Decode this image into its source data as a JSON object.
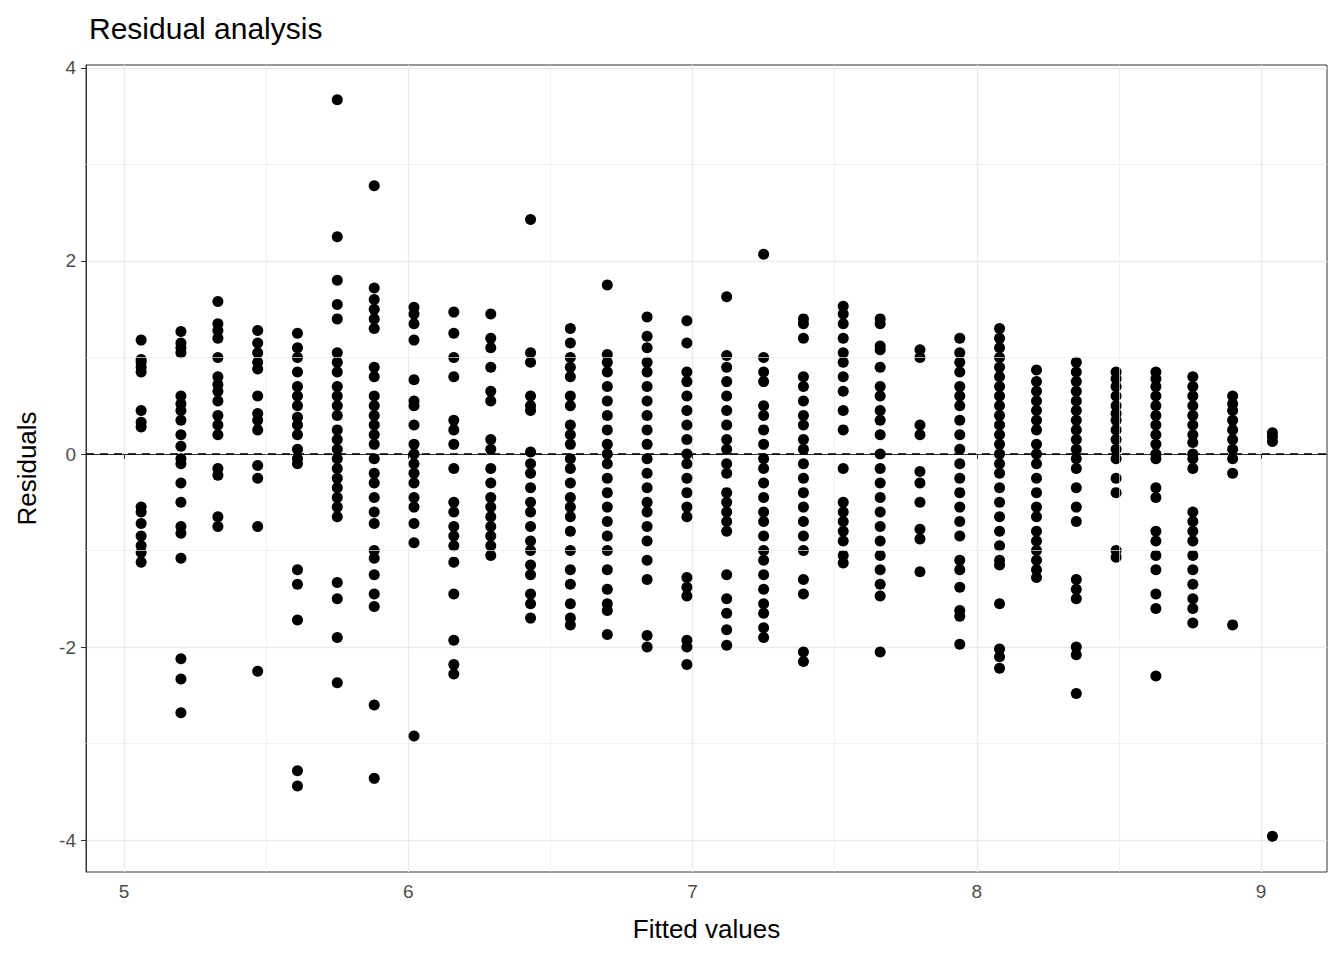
{
  "chart_data": {
    "type": "scatter",
    "title": "Residual analysis",
    "x_label": "Fitted values",
    "y_label": "Residuals",
    "color": "#000000",
    "marker": "circle",
    "grid": true,
    "hline": 0,
    "xlim": [
      4.866,
      9.232
    ],
    "ylim": [
      -4.33,
      4.03
    ],
    "xticks": [
      5,
      6,
      7,
      8,
      9
    ],
    "yticks": [
      -4,
      -2,
      0,
      2,
      4
    ],
    "x": [
      5.06,
      5.06,
      5.06,
      5.06,
      5.06,
      5.06,
      5.06,
      5.06,
      5.06,
      5.06,
      5.06,
      5.06,
      5.06,
      5.06,
      5.06,
      5.2,
      5.2,
      5.2,
      5.2,
      5.2,
      5.2,
      5.2,
      5.2,
      5.2,
      5.2,
      5.2,
      5.2,
      5.2,
      5.2,
      5.2,
      5.2,
      5.2,
      5.2,
      5.2,
      5.2,
      5.33,
      5.33,
      5.33,
      5.33,
      5.33,
      5.33,
      5.33,
      5.33,
      5.33,
      5.33,
      5.33,
      5.33,
      5.33,
      5.33,
      5.33,
      5.33,
      5.47,
      5.47,
      5.47,
      5.47,
      5.47,
      5.47,
      5.47,
      5.47,
      5.47,
      5.47,
      5.47,
      5.47,
      5.47,
      5.61,
      5.61,
      5.61,
      5.61,
      5.61,
      5.61,
      5.61,
      5.61,
      5.61,
      5.61,
      5.61,
      5.61,
      5.61,
      5.61,
      5.61,
      5.61,
      5.61,
      5.61,
      5.75,
      5.75,
      5.75,
      5.75,
      5.75,
      5.75,
      5.75,
      5.75,
      5.75,
      5.75,
      5.75,
      5.75,
      5.75,
      5.75,
      5.75,
      5.75,
      5.75,
      5.75,
      5.75,
      5.75,
      5.75,
      5.75,
      5.75,
      5.75,
      5.75,
      5.75,
      5.88,
      5.88,
      5.88,
      5.88,
      5.88,
      5.88,
      5.88,
      5.88,
      5.88,
      5.88,
      5.88,
      5.88,
      5.88,
      5.88,
      5.88,
      5.88,
      5.88,
      5.88,
      5.88,
      5.88,
      5.88,
      5.88,
      5.88,
      5.88,
      5.88,
      5.88,
      5.88,
      6.02,
      6.02,
      6.02,
      6.02,
      6.02,
      6.02,
      6.02,
      6.02,
      6.02,
      6.02,
      6.02,
      6.02,
      6.02,
      6.02,
      6.02,
      6.02,
      6.02,
      6.02,
      6.16,
      6.16,
      6.16,
      6.16,
      6.16,
      6.16,
      6.16,
      6.16,
      6.16,
      6.16,
      6.16,
      6.16,
      6.16,
      6.16,
      6.16,
      6.16,
      6.16,
      6.16,
      6.29,
      6.29,
      6.29,
      6.29,
      6.29,
      6.29,
      6.29,
      6.29,
      6.29,
      6.29,
      6.29,
      6.29,
      6.29,
      6.29,
      6.29,
      6.29,
      6.29,
      6.43,
      6.43,
      6.43,
      6.43,
      6.43,
      6.43,
      6.43,
      6.43,
      6.43,
      6.43,
      6.43,
      6.43,
      6.43,
      6.43,
      6.43,
      6.43,
      6.43,
      6.43,
      6.43,
      6.43,
      6.57,
      6.57,
      6.57,
      6.57,
      6.57,
      6.57,
      6.57,
      6.57,
      6.57,
      6.57,
      6.57,
      6.57,
      6.57,
      6.57,
      6.57,
      6.57,
      6.57,
      6.57,
      6.57,
      6.57,
      6.57,
      6.57,
      6.57,
      6.7,
      6.7,
      6.7,
      6.7,
      6.7,
      6.7,
      6.7,
      6.7,
      6.7,
      6.7,
      6.7,
      6.7,
      6.7,
      6.7,
      6.7,
      6.7,
      6.7,
      6.7,
      6.7,
      6.7,
      6.7,
      6.7,
      6.84,
      6.84,
      6.84,
      6.84,
      6.84,
      6.84,
      6.84,
      6.84,
      6.84,
      6.84,
      6.84,
      6.84,
      6.84,
      6.84,
      6.84,
      6.84,
      6.84,
      6.84,
      6.84,
      6.84,
      6.84,
      6.98,
      6.98,
      6.98,
      6.98,
      6.98,
      6.98,
      6.98,
      6.98,
      6.98,
      6.98,
      6.98,
      6.98,
      6.98,
      6.98,
      6.98,
      6.98,
      6.98,
      6.98,
      6.98,
      6.98,
      7.12,
      7.12,
      7.12,
      7.12,
      7.12,
      7.12,
      7.12,
      7.12,
      7.12,
      7.12,
      7.12,
      7.12,
      7.12,
      7.12,
      7.12,
      7.12,
      7.12,
      7.12,
      7.12,
      7.12,
      7.12,
      7.25,
      7.25,
      7.25,
      7.25,
      7.25,
      7.25,
      7.25,
      7.25,
      7.25,
      7.25,
      7.25,
      7.25,
      7.25,
      7.25,
      7.25,
      7.25,
      7.25,
      7.25,
      7.25,
      7.25,
      7.25,
      7.25,
      7.25,
      7.39,
      7.39,
      7.39,
      7.39,
      7.39,
      7.39,
      7.39,
      7.39,
      7.39,
      7.39,
      7.39,
      7.39,
      7.39,
      7.39,
      7.39,
      7.39,
      7.39,
      7.39,
      7.39,
      7.39,
      7.39,
      7.53,
      7.53,
      7.53,
      7.53,
      7.53,
      7.53,
      7.53,
      7.53,
      7.53,
      7.53,
      7.53,
      7.53,
      7.53,
      7.53,
      7.53,
      7.53,
      7.53,
      7.53,
      7.66,
      7.66,
      7.66,
      7.66,
      7.66,
      7.66,
      7.66,
      7.66,
      7.66,
      7.66,
      7.66,
      7.66,
      7.66,
      7.66,
      7.66,
      7.66,
      7.66,
      7.66,
      7.66,
      7.66,
      7.66,
      7.66,
      7.8,
      7.8,
      7.8,
      7.8,
      7.8,
      7.8,
      7.8,
      7.8,
      7.8,
      7.8,
      7.94,
      7.94,
      7.94,
      7.94,
      7.94,
      7.94,
      7.94,
      7.94,
      7.94,
      7.94,
      7.94,
      7.94,
      7.94,
      7.94,
      7.94,
      7.94,
      7.94,
      7.94,
      7.94,
      7.94,
      7.94,
      7.94,
      8.08,
      8.08,
      8.08,
      8.08,
      8.08,
      8.08,
      8.08,
      8.08,
      8.08,
      8.08,
      8.08,
      8.08,
      8.08,
      8.08,
      8.08,
      8.08,
      8.08,
      8.08,
      8.08,
      8.08,
      8.08,
      8.08,
      8.08,
      8.08,
      8.08,
      8.08,
      8.08,
      8.21,
      8.21,
      8.21,
      8.21,
      8.21,
      8.21,
      8.21,
      8.21,
      8.21,
      8.21,
      8.21,
      8.21,
      8.21,
      8.21,
      8.21,
      8.21,
      8.21,
      8.21,
      8.21,
      8.21,
      8.35,
      8.35,
      8.35,
      8.35,
      8.35,
      8.35,
      8.35,
      8.35,
      8.35,
      8.35,
      8.35,
      8.35,
      8.35,
      8.35,
      8.35,
      8.35,
      8.35,
      8.35,
      8.35,
      8.35,
      8.35,
      8.49,
      8.49,
      8.49,
      8.49,
      8.49,
      8.49,
      8.49,
      8.49,
      8.49,
      8.49,
      8.49,
      8.49,
      8.49,
      8.49,
      8.49,
      8.63,
      8.63,
      8.63,
      8.63,
      8.63,
      8.63,
      8.63,
      8.63,
      8.63,
      8.63,
      8.63,
      8.63,
      8.63,
      8.63,
      8.63,
      8.63,
      8.63,
      8.63,
      8.63,
      8.63,
      8.76,
      8.76,
      8.76,
      8.76,
      8.76,
      8.76,
      8.76,
      8.76,
      8.76,
      8.76,
      8.76,
      8.76,
      8.76,
      8.76,
      8.76,
      8.76,
      8.76,
      8.76,
      8.76,
      8.76,
      8.76,
      8.9,
      8.9,
      8.9,
      8.9,
      8.9,
      8.9,
      8.9,
      8.9,
      8.9,
      8.9,
      9.04,
      9.04,
      9.04,
      9.04
    ],
    "values": [
      1.18,
      0.98,
      0.95,
      0.9,
      0.85,
      0.45,
      0.33,
      0.28,
      -0.55,
      -0.6,
      -0.72,
      -0.85,
      -0.95,
      -1.02,
      -1.12,
      1.27,
      1.15,
      1.1,
      1.05,
      0.6,
      0.52,
      0.45,
      0.35,
      0.2,
      0.08,
      -0.05,
      -0.1,
      -0.3,
      -0.5,
      -0.75,
      -0.82,
      -1.08,
      -2.12,
      -2.33,
      -2.68,
      1.58,
      1.35,
      1.28,
      1.2,
      1.0,
      0.8,
      0.72,
      0.65,
      0.55,
      0.4,
      0.3,
      0.2,
      -0.15,
      -0.22,
      -0.65,
      -0.75,
      1.28,
      1.15,
      1.05,
      0.95,
      0.88,
      0.6,
      0.42,
      0.35,
      0.25,
      -0.12,
      -0.25,
      -0.75,
      -2.25,
      1.25,
      1.1,
      1.0,
      0.85,
      0.7,
      0.6,
      0.5,
      0.38,
      0.3,
      0.2,
      0.05,
      -0.05,
      -0.1,
      -1.2,
      -1.35,
      -1.72,
      -3.28,
      -3.44,
      3.67,
      2.25,
      1.8,
      1.55,
      1.4,
      1.05,
      0.95,
      0.85,
      0.7,
      0.6,
      0.5,
      0.4,
      0.25,
      0.15,
      0.05,
      -0.05,
      -0.15,
      -0.25,
      -0.35,
      -0.45,
      -0.55,
      -0.65,
      -1.33,
      -1.5,
      -1.9,
      -2.37,
      2.78,
      1.72,
      1.6,
      1.5,
      1.4,
      1.3,
      0.9,
      0.8,
      0.6,
      0.5,
      0.4,
      0.3,
      0.2,
      0.1,
      -0.05,
      -0.2,
      -0.3,
      -0.45,
      -0.6,
      -0.72,
      -1.0,
      -1.08,
      -1.25,
      -1.45,
      -1.58,
      -2.6,
      -3.36,
      1.52,
      1.45,
      1.35,
      1.18,
      0.77,
      0.55,
      0.5,
      0.3,
      0.1,
      0,
      -0.1,
      -0.2,
      -0.3,
      -0.45,
      -0.55,
      -0.72,
      -0.92,
      -2.92,
      1.47,
      1.25,
      1.0,
      0.8,
      0.35,
      0.25,
      0.1,
      -0.15,
      -0.5,
      -0.6,
      -0.75,
      -0.85,
      -0.95,
      -1.12,
      -1.45,
      -1.93,
      -2.18,
      -2.28,
      1.45,
      1.2,
      1.1,
      0.9,
      0.65,
      0.55,
      0.15,
      0.05,
      -0.15,
      -0.3,
      -0.45,
      -0.55,
      -0.65,
      -0.75,
      -0.85,
      -0.95,
      -1.05,
      2.43,
      1.05,
      0.95,
      0.6,
      0.5,
      0.45,
      0.02,
      -0.1,
      -0.2,
      -0.35,
      -0.5,
      -0.6,
      -0.75,
      -0.9,
      -1.0,
      -1.15,
      -1.25,
      -1.45,
      -1.55,
      -1.7,
      1.3,
      1.15,
      1.0,
      0.9,
      0.8,
      0.6,
      0.5,
      0.3,
      0.2,
      0.1,
      -0.05,
      -0.15,
      -0.3,
      -0.45,
      -0.55,
      -0.65,
      -0.8,
      -1.0,
      -1.2,
      -1.35,
      -1.55,
      -1.7,
      -1.77,
      1.75,
      1.03,
      0.95,
      0.85,
      0.7,
      0.55,
      0.4,
      0.25,
      0.1,
      0,
      -0.1,
      -0.25,
      -0.4,
      -0.55,
      -0.7,
      -0.85,
      -1.0,
      -1.2,
      -1.4,
      -1.55,
      -1.62,
      -1.87,
      1.42,
      1.22,
      1.1,
      0.95,
      0.85,
      0.7,
      0.55,
      0.4,
      0.25,
      0.1,
      -0.05,
      -0.2,
      -0.35,
      -0.5,
      -0.6,
      -0.75,
      -0.9,
      -1.1,
      -1.3,
      -1.88,
      -2.0,
      1.38,
      1.15,
      0.85,
      0.75,
      0.6,
      0.45,
      0.3,
      0.15,
      0,
      -0.1,
      -0.25,
      -0.4,
      -0.55,
      -0.65,
      -1.28,
      -1.38,
      -1.47,
      -1.93,
      -2.0,
      -2.18,
      1.63,
      1.02,
      0.9,
      0.75,
      0.6,
      0.45,
      0.3,
      0.15,
      0.05,
      -0.1,
      -0.2,
      -0.4,
      -0.5,
      -0.6,
      -0.7,
      -0.8,
      -1.25,
      -1.5,
      -1.65,
      -1.82,
      -1.98,
      2.07,
      1.0,
      0.85,
      0.75,
      0.5,
      0.4,
      0.25,
      0.1,
      -0.05,
      -0.15,
      -0.3,
      -0.45,
      -0.6,
      -0.7,
      -0.85,
      -1.0,
      -1.1,
      -1.25,
      -1.4,
      -1.55,
      -1.65,
      -1.8,
      -1.9,
      1.4,
      1.35,
      1.2,
      0.8,
      0.7,
      0.55,
      0.4,
      0.3,
      0.15,
      0.05,
      -0.1,
      -0.25,
      -0.4,
      -0.55,
      -0.7,
      -0.85,
      -1.0,
      -1.3,
      -1.45,
      -2.05,
      -2.15,
      1.53,
      1.45,
      1.35,
      1.2,
      1.05,
      0.95,
      0.8,
      0.65,
      0.45,
      0.25,
      -0.15,
      -0.5,
      -0.6,
      -0.7,
      -0.8,
      -0.9,
      -1.05,
      -1.13,
      1.4,
      1.35,
      1.12,
      1.08,
      0.9,
      0.7,
      0.6,
      0.45,
      0.35,
      0.2,
      0,
      -0.15,
      -0.3,
      -0.45,
      -0.6,
      -0.75,
      -0.9,
      -1.05,
      -1.2,
      -1.35,
      -1.47,
      -2.05,
      1.08,
      1.0,
      0.3,
      0.2,
      -0.18,
      -0.3,
      -0.5,
      -0.78,
      -0.88,
      -1.22,
      1.2,
      1.05,
      0.95,
      0.85,
      0.7,
      0.6,
      0.5,
      0.35,
      0.2,
      0.05,
      -0.1,
      -0.25,
      -0.4,
      -0.55,
      -0.7,
      -0.85,
      -1.1,
      -1.2,
      -1.38,
      -1.62,
      -1.68,
      -1.97,
      1.3,
      1.2,
      1.1,
      1.0,
      0.9,
      0.8,
      0.7,
      0.6,
      0.5,
      0.4,
      0.3,
      0.2,
      0.1,
      0,
      -0.1,
      -0.2,
      -0.35,
      -0.5,
      -0.65,
      -0.8,
      -0.95,
      -1.1,
      -1.15,
      -1.55,
      -2.02,
      -2.1,
      -2.22,
      0.87,
      0.75,
      0.65,
      0.55,
      0.45,
      0.35,
      0.25,
      0.1,
      0,
      -0.1,
      -0.25,
      -0.4,
      -0.55,
      -0.65,
      -0.8,
      -0.9,
      -1.0,
      -1.1,
      -1.2,
      -1.28,
      0.95,
      0.85,
      0.75,
      0.65,
      0.55,
      0.45,
      0.35,
      0.25,
      0.15,
      0.05,
      -0.05,
      -0.15,
      -0.35,
      -0.55,
      -0.7,
      -1.3,
      -1.4,
      -1.5,
      -2.0,
      -2.08,
      -2.48,
      0.85,
      0.78,
      0.7,
      0.6,
      0.5,
      0.42,
      0.35,
      0.25,
      0.15,
      0.05,
      -0.05,
      -0.25,
      -0.4,
      -1.0,
      -1.07,
      0.85,
      0.78,
      0.7,
      0.6,
      0.5,
      0.4,
      0.3,
      0.2,
      0.1,
      0,
      -0.05,
      -0.35,
      -0.45,
      -0.8,
      -0.9,
      -1.05,
      -1.2,
      -1.45,
      -1.6,
      -2.3,
      0.8,
      0.7,
      0.6,
      0.5,
      0.4,
      0.3,
      0.2,
      0.12,
      0,
      -0.05,
      -0.15,
      -0.6,
      -0.7,
      -0.8,
      -0.9,
      -1.05,
      -1.2,
      -1.35,
      -1.5,
      -1.6,
      -1.75,
      0.6,
      0.52,
      0.45,
      0.35,
      0.25,
      0.15,
      0.05,
      -0.05,
      -0.2,
      -1.77,
      0.22,
      0.18,
      0.13,
      -3.96
    ]
  }
}
